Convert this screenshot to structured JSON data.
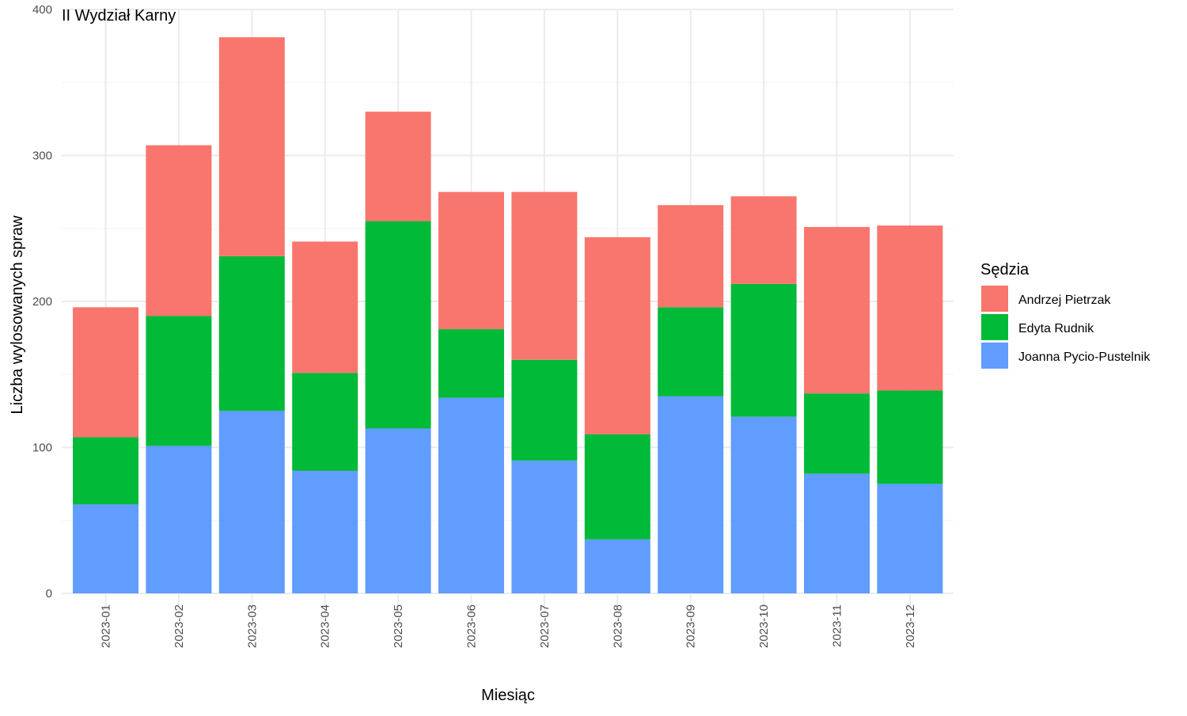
{
  "chart_data": {
    "type": "bar",
    "stacked": true,
    "title": "II Wydział Karny",
    "xlabel": "Miesiąc",
    "ylabel": "Liczba wylosowanych spraw",
    "ylim": [
      0,
      400
    ],
    "yticks": [
      0,
      100,
      200,
      300,
      400
    ],
    "grid": true,
    "legend_position": "right",
    "legend_title": "Sędzia",
    "categories": [
      "2023-01",
      "2023-02",
      "2023-03",
      "2023-04",
      "2023-05",
      "2023-06",
      "2023-07",
      "2023-08",
      "2023-09",
      "2023-10",
      "2023-11",
      "2023-12"
    ],
    "series": [
      {
        "name": "Joanna Pycio-Pustelnik",
        "color": "#619cff",
        "values": [
          61,
          101,
          125,
          84,
          113,
          134,
          91,
          37,
          135,
          121,
          82,
          75
        ]
      },
      {
        "name": "Edyta Rudnik",
        "color": "#00ba38",
        "values": [
          46,
          89,
          106,
          67,
          142,
          47,
          69,
          72,
          61,
          91,
          55,
          64
        ]
      },
      {
        "name": "Andrzej Pietrzak",
        "color": "#f8766d",
        "values": [
          89,
          117,
          150,
          90,
          75,
          94,
          115,
          135,
          70,
          60,
          114,
          113
        ]
      }
    ],
    "legend_order": [
      "Andrzej Pietrzak",
      "Edyta Rudnik",
      "Joanna Pycio-Pustelnik"
    ]
  }
}
